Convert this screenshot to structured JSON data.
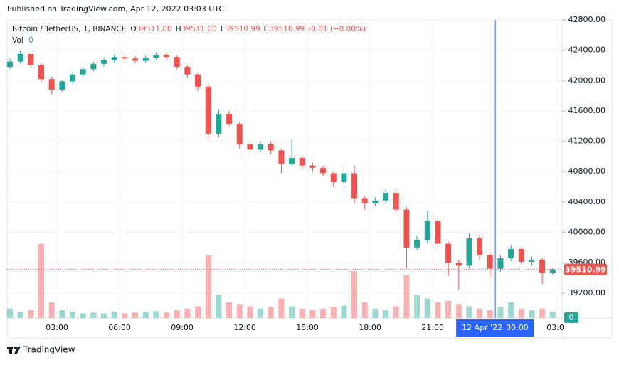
{
  "chart_data": {
    "type": "candlestick",
    "published": "Published on TradingView.com, Apr 12, 2022 03:03 UTC",
    "symbol": "Bitcoin / TetherUS, 1, BINANCE",
    "ohlc_legend": [
      {
        "label": "O",
        "value": "39511.00"
      },
      {
        "label": "H",
        "value": "39511.00"
      },
      {
        "label": "L",
        "value": "39510.99"
      },
      {
        "label": "C",
        "value": "39510.99"
      }
    ],
    "change": "-0.01 (−0.00%)",
    "vol_label": "Vol",
    "vol_legend_value": 0,
    "brand": "TradingView",
    "up_color": "#26a69a",
    "down_color": "#ef5350",
    "x": [
      0.75,
      1.25,
      1.75,
      2.25,
      2.75,
      3.25,
      3.75,
      4.25,
      4.75,
      5.25,
      5.75,
      6.25,
      6.75,
      7.25,
      7.75,
      8.25,
      8.75,
      9.25,
      9.75,
      10.25,
      10.75,
      11.25,
      11.75,
      12.25,
      12.75,
      13.25,
      13.75,
      14.25,
      14.75,
      15.25,
      15.75,
      16.25,
      16.75,
      17.25,
      17.75,
      18.25,
      18.75,
      19.25,
      19.75,
      20.25,
      20.75,
      21.25,
      21.75,
      22.25,
      22.75,
      23.25,
      23.75,
      24.25,
      24.75,
      25.25,
      25.75,
      26.25,
      26.75
    ],
    "open": [
      42180,
      42250,
      42350,
      42200,
      42020,
      41880,
      41990,
      42080,
      42150,
      42220,
      42270,
      42310,
      42290,
      42260,
      42300,
      42340,
      42310,
      42180,
      42080,
      41920,
      41300,
      41560,
      41430,
      41160,
      41090,
      41160,
      41080,
      40900,
      40980,
      40880,
      40850,
      40780,
      40660,
      40780,
      40450,
      40380,
      40420,
      40520,
      40300,
      39800,
      39900,
      40150,
      39850,
      39600,
      39560,
      39920,
      39700,
      39520,
      39660,
      39780,
      39610,
      39640,
      39460
    ],
    "high": [
      42290,
      42400,
      42380,
      42230,
      42050,
      42010,
      42110,
      42180,
      42250,
      42300,
      42340,
      42350,
      42320,
      42330,
      42370,
      42370,
      42330,
      42200,
      42100,
      41950,
      41620,
      41600,
      41460,
      41200,
      41200,
      41200,
      41100,
      41220,
      41010,
      40920,
      40880,
      40800,
      40880,
      40880,
      40480,
      40460,
      40580,
      40560,
      40330,
      39960,
      40280,
      40180,
      39880,
      39640,
      39990,
      39960,
      39740,
      39700,
      39840,
      39800,
      39680,
      39670,
      39530
    ],
    "low": [
      42150,
      42220,
      42170,
      41980,
      41820,
      41850,
      41960,
      42050,
      42120,
      42190,
      42240,
      42260,
      42230,
      42240,
      42280,
      42280,
      42150,
      42040,
      41860,
      41230,
      41260,
      41400,
      41100,
      41040,
      41060,
      41030,
      40780,
      40880,
      40840,
      40790,
      40740,
      40600,
      40640,
      40380,
      40300,
      40350,
      40380,
      40270,
      39530,
      39760,
      39860,
      39800,
      39420,
      39240,
      39530,
      39640,
      39400,
      39480,
      39620,
      39580,
      39560,
      39320,
      39440
    ],
    "close": [
      42250,
      42350,
      42200,
      42020,
      41880,
      41990,
      42080,
      42150,
      42220,
      42270,
      42310,
      42290,
      42260,
      42300,
      42340,
      42310,
      42180,
      42080,
      41920,
      41300,
      41560,
      41430,
      41160,
      41090,
      41160,
      41080,
      40900,
      40980,
      40880,
      40850,
      40780,
      40660,
      40780,
      40450,
      40380,
      40420,
      40520,
      40300,
      39800,
      39900,
      40150,
      39850,
      39600,
      39560,
      39920,
      39700,
      39520,
      39660,
      39780,
      39610,
      39640,
      39460,
      39510.99
    ],
    "volume": [
      12,
      8,
      10,
      95,
      20,
      10,
      8,
      6,
      7,
      6,
      8,
      6,
      7,
      8,
      9,
      7,
      10,
      12,
      15,
      80,
      30,
      20,
      18,
      15,
      12,
      14,
      25,
      15,
      12,
      10,
      12,
      14,
      16,
      60,
      20,
      12,
      10,
      15,
      55,
      30,
      25,
      20,
      22,
      18,
      15,
      12,
      10,
      14,
      20,
      12,
      10,
      12,
      8
    ],
    "vol_ylim": [
      0,
      100
    ],
    "vol_yticks": [
      0
    ],
    "last_price": 39510.99,
    "xlim": [
      0.613,
      27.2
    ],
    "xticks": [
      {
        "value": 3,
        "label": "03:00"
      },
      {
        "value": 6,
        "label": "06:00"
      },
      {
        "value": 9,
        "label": "09:00"
      },
      {
        "value": 12,
        "label": "12:00"
      },
      {
        "value": 15,
        "label": "15:00"
      },
      {
        "value": 18,
        "label": "18:00"
      },
      {
        "value": 21,
        "label": "21:00"
      },
      {
        "value": 27,
        "label": "03:00"
      }
    ],
    "crosshair": {
      "value": 24,
      "date": "12 Apr '22",
      "time": "00:00"
    },
    "ylim": [
      38870,
      42800
    ],
    "yticks": [
      {
        "value": 42800,
        "label": "42800.00"
      },
      {
        "value": 42400,
        "label": "42400.00"
      },
      {
        "value": 42000,
        "label": "42000.00"
      },
      {
        "value": 41600,
        "label": "41600.00"
      },
      {
        "value": 41200,
        "label": "41200.00"
      },
      {
        "value": 40800,
        "label": "40800.00"
      },
      {
        "value": 40400,
        "label": "40400.00"
      },
      {
        "value": 40000,
        "label": "40000.00"
      },
      {
        "value": 39600,
        "label": "39600.00"
      },
      {
        "value": 39200,
        "label": "39200.00"
      }
    ],
    "grid": true
  }
}
